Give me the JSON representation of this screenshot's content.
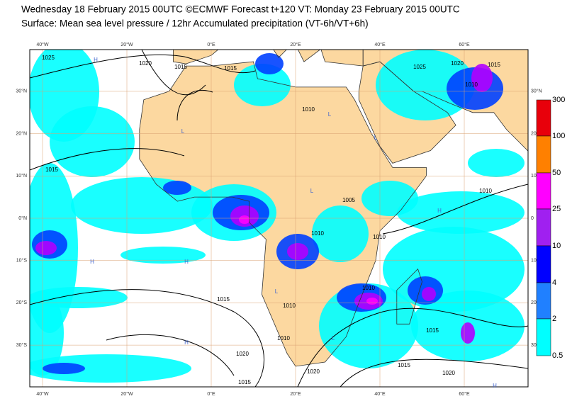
{
  "header": {
    "line1": "Wednesday 18 February 2015 00UTC ©ECMWF Forecast t+120 VT: Monday 23 February 2015 00UTC",
    "line2": "Surface: Mean sea level pressure / 12hr Accumulated precipitation (VT-6h/VT+6h)"
  },
  "map": {
    "lon_labels": [
      "40°W",
      "20°W",
      "0°E",
      "20°E",
      "40°E",
      "60°E"
    ],
    "lat_labels_left": [
      "30°N",
      "20°N",
      "10°N",
      "0°N",
      "10°S",
      "20°S",
      "30°S"
    ],
    "lat_labels_right": [
      "30°N",
      "20",
      "10",
      "0",
      "10",
      "20",
      "30"
    ],
    "contour_labels": [
      "1025",
      "1020",
      "1015",
      "1015",
      "1010",
      "1015",
      "1005",
      "1010",
      "1010",
      "1010",
      "1010",
      "1015",
      "1010",
      "1020",
      "1020",
      "1015",
      "1015",
      "1015",
      "1020",
      "1010",
      "1025",
      "1020",
      "1015",
      "1010"
    ],
    "pressure_centers": [
      "H",
      "H",
      "L",
      "L",
      "L",
      "H",
      "L",
      "H",
      "H",
      "L",
      "H",
      "L"
    ]
  },
  "legend": {
    "labels": [
      "300",
      "100",
      "50",
      "25",
      "10",
      "4",
      "2",
      "0.5"
    ]
  }
}
